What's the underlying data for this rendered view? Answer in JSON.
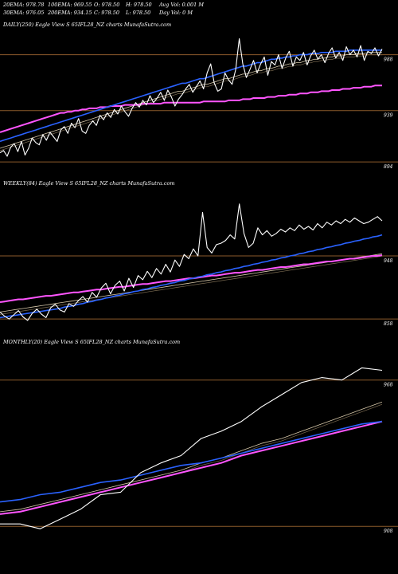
{
  "header": {
    "row1": [
      "20EMA: 978.78",
      "100EMA: 969.55",
      "O: 978.50",
      "H: 978.50",
      "Avg Vol: 0.001 M"
    ],
    "row2": [
      "30EMA: 976.05",
      "200EMA: 934.15",
      "C: 978.50",
      "L: 978.50",
      "Day Vol: 0  M"
    ]
  },
  "colors": {
    "background": "#000000",
    "price": "#ffffff",
    "ema_short": "#2a62ff",
    "ema_mid": "#d6c7a8",
    "ema_long": "#ff55ff",
    "level_line": "#8b5a2b"
  },
  "chart_data": [
    {
      "type": "line",
      "title": "DAILY(250) Eagle  View  S              65IFL28_NZ charts MunafaSutra.com",
      "level_labels": [
        "988",
        "939",
        "894"
      ],
      "levels": [
        988,
        939,
        894
      ],
      "ylim": [
        885,
        1008
      ],
      "series": [
        {
          "role": "price",
          "values": [
            902,
            904,
            899,
            907,
            910,
            903,
            912,
            900,
            906,
            915,
            911,
            909,
            918,
            913,
            920,
            916,
            912,
            922,
            925,
            919,
            928,
            924,
            932,
            921,
            919,
            926,
            930,
            926,
            935,
            931,
            937,
            933,
            940,
            936,
            943,
            938,
            934,
            941,
            946,
            942,
            948,
            944,
            952,
            946,
            950,
            955,
            948,
            957,
            951,
            943,
            949,
            953,
            958,
            962,
            955,
            960,
            965,
            958,
            972,
            980,
            963,
            956,
            958,
            972,
            966,
            962,
            975,
            1002,
            980,
            968,
            975,
            983,
            972,
            980,
            986,
            970,
            982,
            979,
            988,
            976,
            985,
            991,
            978,
            986,
            983,
            990,
            979,
            987,
            992,
            984,
            988,
            981,
            989,
            994,
            985,
            990,
            983,
            995,
            988,
            992,
            986,
            996,
            983,
            991,
            989,
            994,
            987,
            993
          ]
        },
        {
          "role": "ema_short",
          "values": [
            912,
            913,
            914,
            915,
            916,
            917,
            918,
            919,
            920,
            921,
            922,
            923,
            924,
            925,
            926,
            927,
            928,
            929,
            930,
            931,
            932,
            933,
            934,
            935,
            936,
            937,
            938,
            939,
            940,
            941,
            942,
            943,
            944,
            945,
            946,
            947,
            948,
            949,
            950,
            951,
            952,
            953,
            954,
            955,
            956,
            957,
            958,
            959,
            960,
            961,
            962,
            963,
            963,
            964,
            965,
            966,
            967,
            967,
            968,
            969,
            970,
            971,
            972,
            973,
            974,
            975,
            976,
            977,
            978,
            978,
            979,
            980,
            981,
            981,
            982,
            983,
            984,
            984,
            985,
            985,
            986,
            986,
            987,
            987,
            988,
            988,
            988,
            989,
            989,
            989,
            990,
            990,
            990,
            990,
            991,
            991,
            991,
            991,
            992,
            992,
            992,
            992,
            992,
            992,
            992,
            992,
            992,
            992
          ]
        },
        {
          "role": "ema_mid",
          "values": [
            906,
            907,
            908,
            909,
            910,
            911,
            912,
            913,
            914,
            915,
            916,
            917,
            918,
            919,
            920,
            921,
            922,
            923,
            924,
            925,
            926,
            927,
            928,
            929,
            930,
            931,
            932,
            933,
            934,
            935,
            936,
            937,
            938,
            939,
            940,
            941,
            942,
            943,
            944,
            945,
            946,
            947,
            948,
            949,
            950,
            951,
            952,
            953,
            954,
            955,
            956,
            956,
            957,
            958,
            959,
            960,
            961,
            962,
            962,
            963,
            964,
            965,
            966,
            967,
            967,
            968,
            969,
            970,
            971,
            971,
            972,
            973,
            974,
            974,
            975,
            976,
            976,
            977,
            978,
            978,
            979,
            980,
            980,
            981,
            981,
            982,
            983,
            983,
            984,
            984,
            985,
            985,
            986,
            986,
            987,
            987,
            987,
            988,
            988,
            988,
            989,
            989,
            989,
            990,
            990,
            990,
            990,
            990
          ]
        },
        {
          "role": "ema_long",
          "values": [
            920,
            921,
            922,
            923,
            924,
            925,
            926,
            927,
            928,
            929,
            930,
            931,
            932,
            933,
            934,
            935,
            936,
            937,
            937,
            938,
            938,
            939,
            939,
            940,
            940,
            941,
            941,
            941,
            942,
            942,
            942,
            943,
            943,
            943,
            943,
            944,
            944,
            944,
            944,
            944,
            945,
            945,
            945,
            945,
            945,
            945,
            946,
            946,
            946,
            946,
            946,
            946,
            946,
            946,
            946,
            946,
            946,
            947,
            947,
            947,
            947,
            947,
            947,
            947,
            948,
            948,
            948,
            948,
            949,
            949,
            949,
            950,
            950,
            950,
            950,
            951,
            951,
            951,
            952,
            952,
            952,
            953,
            953,
            953,
            954,
            954,
            954,
            955,
            955,
            955,
            956,
            956,
            956,
            957,
            957,
            957,
            958,
            958,
            958,
            959,
            959,
            959,
            960,
            960,
            960,
            961,
            961,
            961
          ]
        }
      ]
    },
    {
      "type": "line",
      "title": "WEEKLY(84) Eagle  View  S              65IFL28_NZ charts MunafaSutra.com",
      "level_labels": [
        "948",
        "858"
      ],
      "levels": [
        948,
        858
      ],
      "ylim": [
        840,
        1040
      ],
      "series": [
        {
          "role": "price",
          "values": [
            868,
            862,
            858,
            864,
            870,
            861,
            856,
            866,
            872,
            865,
            860,
            874,
            879,
            871,
            868,
            880,
            876,
            884,
            890,
            882,
            896,
            889,
            902,
            909,
            894,
            906,
            912,
            898,
            916,
            903,
            920,
            914,
            926,
            917,
            930,
            922,
            936,
            925,
            942,
            933,
            950,
            944,
            958,
            948,
            1010,
            960,
            952,
            964,
            966,
            970,
            978,
            972,
            1022,
            980,
            960,
            966,
            988,
            978,
            984,
            976,
            980,
            986,
            982,
            988,
            984,
            992,
            986,
            990,
            985,
            994,
            988,
            996,
            992,
            998,
            994,
            1000,
            996,
            1002,
            998,
            994,
            996,
            1000,
            1004,
            998
          ]
        },
        {
          "role": "ema_short",
          "values": [
            860,
            861,
            862,
            863,
            864,
            865,
            866,
            867,
            868,
            869,
            870,
            871,
            872,
            873,
            875,
            876,
            877,
            879,
            880,
            882,
            883,
            885,
            886,
            888,
            889,
            891,
            892,
            894,
            895,
            897,
            898,
            900,
            901,
            903,
            904,
            906,
            907,
            909,
            910,
            912,
            913,
            915,
            916,
            918,
            919,
            921,
            922,
            924,
            925,
            927,
            928,
            930,
            931,
            933,
            934,
            936,
            937,
            939,
            940,
            942,
            943,
            945,
            946,
            948,
            949,
            951,
            952,
            954,
            955,
            957,
            958,
            960,
            961,
            963,
            964,
            966,
            967,
            969,
            970,
            972,
            973,
            975,
            976,
            978
          ]
        },
        {
          "role": "ema_mid",
          "values": [
            868,
            869,
            870,
            871,
            872,
            873,
            874,
            875,
            876,
            877,
            878,
            879,
            880,
            881,
            882,
            883,
            884,
            885,
            886,
            887,
            888,
            889,
            890,
            891,
            892,
            893,
            894,
            895,
            896,
            897,
            898,
            899,
            900,
            901,
            902,
            903,
            904,
            905,
            906,
            907,
            908,
            909,
            910,
            911,
            912,
            913,
            914,
            915,
            916,
            917,
            918,
            919,
            920,
            921,
            922,
            923,
            924,
            925,
            926,
            927,
            928,
            929,
            930,
            931,
            932,
            933,
            934,
            935,
            936,
            937,
            938,
            939,
            940,
            941,
            942,
            943,
            944,
            945,
            946,
            947,
            948,
            949,
            950,
            951
          ]
        },
        {
          "role": "ema_long",
          "values": [
            882,
            883,
            884,
            885,
            886,
            886,
            887,
            888,
            889,
            890,
            891,
            891,
            892,
            893,
            894,
            895,
            896,
            896,
            897,
            898,
            899,
            900,
            900,
            901,
            902,
            903,
            904,
            904,
            905,
            906,
            907,
            908,
            908,
            909,
            910,
            911,
            912,
            912,
            913,
            914,
            915,
            916,
            916,
            917,
            918,
            919,
            920,
            920,
            921,
            922,
            923,
            924,
            924,
            925,
            926,
            927,
            928,
            928,
            929,
            930,
            931,
            932,
            932,
            933,
            934,
            935,
            936,
            936,
            937,
            938,
            939,
            940,
            940,
            941,
            942,
            943,
            944,
            944,
            945,
            946,
            947,
            948,
            948,
            949
          ]
        }
      ]
    },
    {
      "type": "line",
      "title": "MONTHLY(20) Eagle  View  S              65IFL28_NZ charts MunafaSutra.com",
      "level_labels": [
        "968",
        "908"
      ],
      "levels": [
        968,
        908
      ],
      "ylim": [
        895,
        980
      ],
      "series": [
        {
          "role": "price",
          "values": [
            909,
            909,
            907,
            911,
            915,
            921,
            922,
            930,
            934,
            937,
            944,
            947,
            951,
            957,
            962,
            967,
            969,
            968,
            973,
            972
          ]
        },
        {
          "role": "ema_short",
          "values": [
            918,
            919,
            921,
            922,
            924,
            926,
            927,
            929,
            931,
            933,
            934,
            936,
            938,
            940,
            942,
            944,
            946,
            948,
            950,
            951
          ]
        },
        {
          "role": "ema_mid",
          "values": [
            914,
            915,
            917,
            919,
            921,
            923,
            925,
            927,
            929,
            931,
            934,
            936,
            939,
            942,
            944,
            947,
            950,
            953,
            956,
            959
          ]
        },
        {
          "role": "ema_long",
          "values": [
            913,
            914,
            916,
            918,
            920,
            922,
            924,
            926,
            928,
            930,
            932,
            934,
            937,
            939,
            941,
            943,
            945,
            947,
            949,
            951
          ]
        }
      ]
    }
  ]
}
